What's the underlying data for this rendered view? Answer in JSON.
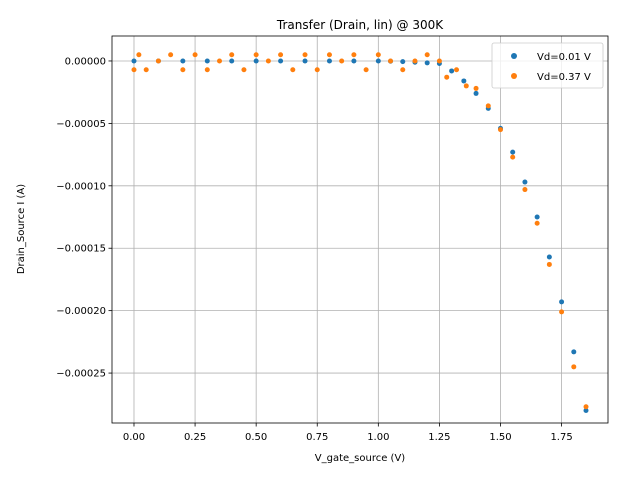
{
  "chart_data": {
    "type": "scatter",
    "title": "Transfer (Drain, lin) @ 300K",
    "xlabel": "V_gate_source (V)",
    "ylabel": "Drain_Source I (A)",
    "xlim": [
      -0.09,
      1.94
    ],
    "ylim": [
      -0.00029,
      2e-05
    ],
    "x_ticks": [
      0.0,
      0.25,
      0.5,
      0.75,
      1.0,
      1.25,
      1.5,
      1.75
    ],
    "x_tick_labels": [
      "0.00",
      "0.25",
      "0.50",
      "0.75",
      "1.00",
      "1.25",
      "1.50",
      "1.75"
    ],
    "y_ticks": [
      0.0,
      -5e-05,
      -0.0001,
      -0.00015,
      -0.0002,
      -0.00025
    ],
    "y_tick_labels": [
      "0.00000",
      "−0.00005",
      "−0.00010",
      "−0.00015",
      "−0.00020",
      "−0.00025"
    ],
    "grid": true,
    "legend_position": "upper-right",
    "vgs_range": [
      0.0,
      1.85
    ],
    "threshold_v": 1.25,
    "series": [
      {
        "name": "Vd=0.01 V",
        "color": "#1f77b4",
        "points": [
          [
            0.0,
            0.0
          ],
          [
            0.1,
            0.0
          ],
          [
            0.2,
            0.0
          ],
          [
            0.3,
            0.0
          ],
          [
            0.4,
            0.0
          ],
          [
            0.5,
            0.0
          ],
          [
            0.6,
            0.0
          ],
          [
            0.7,
            0.0
          ],
          [
            0.8,
            0.0
          ],
          [
            0.9,
            0.0
          ],
          [
            1.0,
            0.0
          ],
          [
            1.05,
            -2e-07
          ],
          [
            1.1,
            -5e-07
          ],
          [
            1.15,
            -1e-06
          ],
          [
            1.2,
            -1.5e-06
          ],
          [
            1.25,
            -2e-06
          ],
          [
            1.3,
            -8e-06
          ],
          [
            1.35,
            -1.6e-05
          ],
          [
            1.4,
            -2.6e-05
          ],
          [
            1.45,
            -3.8e-05
          ],
          [
            1.5,
            -5.4e-05
          ],
          [
            1.55,
            -7.3e-05
          ],
          [
            1.6,
            -9.7e-05
          ],
          [
            1.65,
            -0.000125
          ],
          [
            1.7,
            -0.000157
          ],
          [
            1.75,
            -0.000193
          ],
          [
            1.8,
            -0.000233
          ],
          [
            1.85,
            -0.00028
          ]
        ]
      },
      {
        "name": "Vd=0.37 V",
        "color": "#ff7f0e",
        "points": [
          [
            0.0,
            -7e-06
          ],
          [
            0.02,
            5e-06
          ],
          [
            0.05,
            -7e-06
          ],
          [
            0.1,
            0.0
          ],
          [
            0.15,
            5e-06
          ],
          [
            0.2,
            -7e-06
          ],
          [
            0.25,
            5e-06
          ],
          [
            0.3,
            -7e-06
          ],
          [
            0.35,
            0.0
          ],
          [
            0.4,
            5e-06
          ],
          [
            0.45,
            -7e-06
          ],
          [
            0.5,
            5e-06
          ],
          [
            0.55,
            0.0
          ],
          [
            0.6,
            5e-06
          ],
          [
            0.65,
            -7e-06
          ],
          [
            0.7,
            5e-06
          ],
          [
            0.75,
            -7e-06
          ],
          [
            0.8,
            5e-06
          ],
          [
            0.85,
            0.0
          ],
          [
            0.9,
            5e-06
          ],
          [
            0.95,
            -7e-06
          ],
          [
            1.0,
            5e-06
          ],
          [
            1.05,
            0.0
          ],
          [
            1.1,
            -7e-06
          ],
          [
            1.15,
            0.0
          ],
          [
            1.2,
            5e-06
          ],
          [
            1.25,
            0.0
          ],
          [
            1.28,
            -1.3e-05
          ],
          [
            1.32,
            -7e-06
          ],
          [
            1.36,
            -2e-05
          ],
          [
            1.4,
            -2.2e-05
          ],
          [
            1.45,
            -3.6e-05
          ],
          [
            1.5,
            -5.5e-05
          ],
          [
            1.55,
            -7.7e-05
          ],
          [
            1.6,
            -0.000103
          ],
          [
            1.65,
            -0.00013
          ],
          [
            1.7,
            -0.000163
          ],
          [
            1.75,
            -0.000201
          ],
          [
            1.8,
            -0.000245
          ],
          [
            1.85,
            -0.000277
          ]
        ]
      }
    ]
  }
}
